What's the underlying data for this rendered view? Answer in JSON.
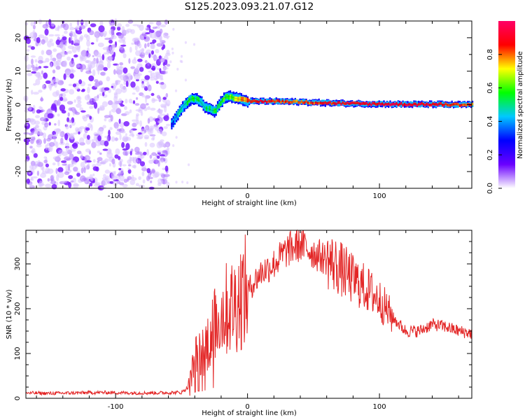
{
  "title": "S125.2023.093.21.07.G12",
  "chart_data": [
    {
      "type": "heatmap",
      "xlabel": "Height of straight line (km)",
      "ylabel": "Frequency (Hz)",
      "xlim": [
        -168,
        170
      ],
      "ylim": [
        -25,
        25
      ],
      "xticks": [
        -100,
        0,
        100
      ],
      "yticks": [
        -20,
        -10,
        0,
        10,
        20
      ],
      "colorbar": {
        "label": "Normalized spectral amplitude",
        "range": [
          0.0,
          1.0
        ],
        "ticks": [
          "0.0",
          "0.2",
          "0.4",
          "0.6",
          "0.8"
        ],
        "colormap": [
          "#ffffff",
          "#6a00ff",
          "#0000ff",
          "#00c8ff",
          "#00ff00",
          "#ffff00",
          "#ff0000",
          "#ff0066"
        ]
      },
      "noise_region_x": [
        -168,
        -60
      ],
      "signal_track": {
        "x": [
          -58,
          -55,
          -52,
          -48,
          -44,
          -40,
          -36,
          -32,
          -28,
          -25,
          -22,
          -18,
          -14,
          -10,
          -5,
          0,
          10,
          20,
          40,
          60,
          80,
          100,
          120,
          140,
          160,
          170
        ],
        "y": [
          -6,
          -4,
          -2,
          0,
          1.5,
          2,
          1,
          -1,
          -1.5,
          -2,
          0,
          2,
          2.5,
          2,
          1.5,
          1,
          1,
          1,
          0.8,
          0.5,
          0.3,
          0.2,
          0.1,
          0.1,
          0,
          0
        ],
        "amplitude": [
          0.3,
          0.4,
          0.45,
          0.5,
          0.55,
          0.5,
          0.5,
          0.5,
          0.5,
          0.55,
          0.55,
          0.6,
          0.6,
          0.65,
          0.75,
          0.85,
          0.9,
          0.85,
          0.8,
          0.85,
          0.9,
          0.9,
          0.9,
          0.9,
          0.85,
          0.8
        ]
      }
    },
    {
      "type": "line",
      "xlabel": "Height of straight line (km)",
      "ylabel": "SNR (10 * v/v)",
      "xlim": [
        -168,
        170
      ],
      "ylim": [
        0,
        375
      ],
      "xticks": [
        -100,
        0,
        100
      ],
      "yticks": [
        0,
        100,
        200,
        300
      ],
      "color": "#e32626",
      "series": [
        {
          "x": [
            -168,
            -150,
            -130,
            -110,
            -90,
            -70,
            -50,
            -45,
            -42,
            -40,
            -38,
            -35,
            -30,
            -25,
            -20,
            -15,
            -10,
            -5,
            0,
            10,
            20,
            30,
            40,
            50,
            60,
            70,
            80,
            90,
            100,
            110,
            120,
            130,
            140,
            150,
            160,
            170
          ],
          "y": [
            12,
            11,
            12,
            13,
            12,
            12,
            13,
            25,
            60,
            90,
            110,
            100,
            130,
            160,
            190,
            200,
            210,
            230,
            240,
            280,
            300,
            330,
            345,
            325,
            310,
            290,
            265,
            245,
            220,
            180,
            150,
            150,
            165,
            160,
            150,
            145
          ]
        }
      ]
    }
  ]
}
